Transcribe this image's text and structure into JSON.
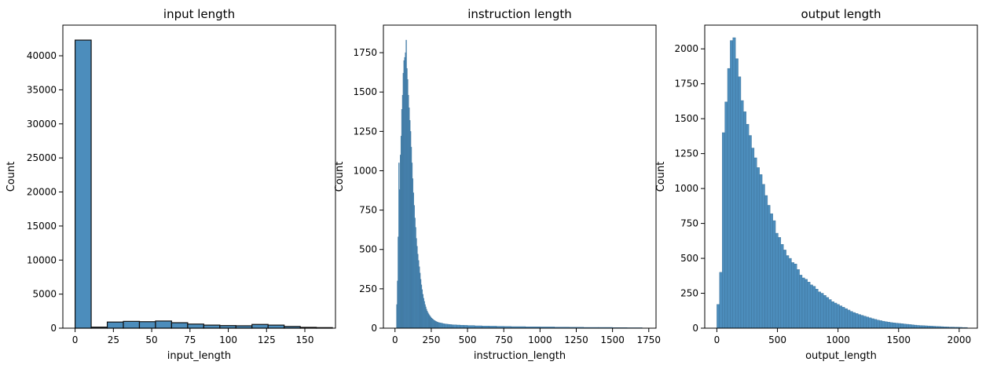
{
  "chart_data": [
    {
      "type": "histogram",
      "title": "input length",
      "xlabel": "input_length",
      "ylabel": "Count",
      "xlim": [
        -8,
        170
      ],
      "ylim": [
        0,
        44500
      ],
      "xticks": [
        0,
        25,
        50,
        75,
        100,
        125,
        150
      ],
      "yticks": [
        0,
        5000,
        10000,
        15000,
        20000,
        25000,
        30000,
        35000,
        40000
      ],
      "color": "#4c8dbc",
      "edgecolor": "#111111",
      "bins": [
        {
          "x0": 0,
          "x1": 10.5,
          "count": 42300
        },
        {
          "x0": 10.5,
          "x1": 21,
          "count": 150
        },
        {
          "x0": 21,
          "x1": 31.5,
          "count": 900
        },
        {
          "x0": 31.5,
          "x1": 42,
          "count": 1000
        },
        {
          "x0": 42,
          "x1": 52.5,
          "count": 950
        },
        {
          "x0": 52.5,
          "x1": 63,
          "count": 1050
        },
        {
          "x0": 63,
          "x1": 73.5,
          "count": 800
        },
        {
          "x0": 73.5,
          "x1": 84,
          "count": 600
        },
        {
          "x0": 84,
          "x1": 94.5,
          "count": 450
        },
        {
          "x0": 94.5,
          "x1": 105,
          "count": 380
        },
        {
          "x0": 105,
          "x1": 115.5,
          "count": 350
        },
        {
          "x0": 115.5,
          "x1": 126,
          "count": 550
        },
        {
          "x0": 126,
          "x1": 136.5,
          "count": 450
        },
        {
          "x0": 136.5,
          "x1": 147,
          "count": 250
        },
        {
          "x0": 147,
          "x1": 157.5,
          "count": 120
        },
        {
          "x0": 157.5,
          "x1": 168,
          "count": 80
        }
      ]
    },
    {
      "type": "histogram",
      "title": "instruction length",
      "xlabel": "instruction_length",
      "ylabel": "Count",
      "xlim": [
        -80,
        1800
      ],
      "ylim": [
        0,
        1925
      ],
      "xticks": [
        0,
        250,
        500,
        750,
        1000,
        1250,
        1500,
        1750
      ],
      "yticks": [
        0,
        250,
        500,
        750,
        1000,
        1250,
        1500,
        1750
      ],
      "color": "#4c8dbc",
      "edgecolor": "#3a6f96",
      "bin_width": 5,
      "x": [
        10,
        15,
        20,
        25,
        30,
        35,
        40,
        45,
        50,
        55,
        60,
        65,
        70,
        75,
        80,
        85,
        90,
        95,
        100,
        105,
        110,
        115,
        120,
        125,
        130,
        135,
        140,
        145,
        150,
        155,
        160,
        165,
        170,
        175,
        180,
        185,
        190,
        195,
        200,
        205,
        210,
        215,
        220,
        225,
        230,
        235,
        240,
        245,
        250,
        255,
        260,
        265,
        270,
        275,
        280,
        285,
        290,
        295,
        300,
        310,
        320,
        330,
        340,
        350,
        360,
        370,
        380,
        390,
        400,
        425,
        450,
        475,
        500,
        550,
        600,
        650,
        700,
        750,
        800,
        900,
        1000,
        1100,
        1200,
        1300,
        1400,
        1500,
        1600,
        1700
      ],
      "values": [
        150,
        300,
        580,
        1050,
        880,
        1100,
        1220,
        1390,
        1480,
        1620,
        1700,
        1720,
        1750,
        1830,
        1650,
        1580,
        1480,
        1400,
        1320,
        1250,
        1150,
        1050,
        950,
        860,
        780,
        700,
        640,
        570,
        520,
        470,
        430,
        390,
        350,
        310,
        275,
        245,
        215,
        190,
        170,
        150,
        135,
        120,
        108,
        98,
        90,
        82,
        76,
        70,
        64,
        60,
        56,
        52,
        49,
        46,
        43,
        41,
        39,
        37,
        35,
        33,
        31,
        29,
        27,
        26,
        25,
        24,
        23,
        22,
        21,
        20,
        19,
        18,
        17,
        15,
        14,
        13,
        12,
        11,
        10,
        9,
        8,
        7,
        6,
        5,
        5,
        4,
        3,
        3
      ]
    },
    {
      "type": "histogram",
      "title": "output length",
      "xlabel": "output_length",
      "ylabel": "Count",
      "xlim": [
        -100,
        2150
      ],
      "ylim": [
        0,
        2170
      ],
      "xticks": [
        0,
        500,
        1000,
        1500,
        2000
      ],
      "yticks": [
        0,
        250,
        500,
        750,
        1000,
        1250,
        1500,
        1750,
        2000
      ],
      "color": "#4c8dbc",
      "edgecolor": "#3a6f96",
      "bin_width": 22,
      "x": [
        0,
        22,
        44,
        66,
        88,
        110,
        132,
        154,
        176,
        198,
        220,
        242,
        264,
        286,
        308,
        330,
        352,
        374,
        396,
        418,
        440,
        462,
        484,
        506,
        528,
        550,
        572,
        594,
        616,
        638,
        660,
        682,
        704,
        726,
        748,
        770,
        792,
        814,
        836,
        858,
        880,
        902,
        924,
        946,
        968,
        990,
        1012,
        1034,
        1056,
        1078,
        1100,
        1122,
        1144,
        1166,
        1188,
        1210,
        1232,
        1254,
        1276,
        1298,
        1320,
        1342,
        1364,
        1386,
        1408,
        1430,
        1452,
        1474,
        1496,
        1518,
        1540,
        1562,
        1584,
        1606,
        1628,
        1650,
        1672,
        1694,
        1716,
        1738,
        1760,
        1782,
        1804,
        1826,
        1848,
        1870,
        1892,
        1914,
        1936,
        1958,
        1980,
        2002,
        2024,
        2046
      ],
      "values": [
        170,
        400,
        1400,
        1620,
        1860,
        2060,
        2080,
        1930,
        1800,
        1630,
        1550,
        1460,
        1380,
        1290,
        1220,
        1150,
        1100,
        1030,
        950,
        880,
        820,
        770,
        680,
        650,
        600,
        560,
        520,
        500,
        470,
        460,
        420,
        380,
        360,
        350,
        330,
        310,
        300,
        280,
        260,
        250,
        235,
        220,
        205,
        190,
        180,
        170,
        160,
        150,
        140,
        130,
        120,
        112,
        105,
        98,
        92,
        86,
        80,
        74,
        68,
        63,
        58,
        54,
        50,
        46,
        43,
        40,
        38,
        36,
        34,
        32,
        30,
        28,
        26,
        24,
        22,
        20,
        19,
        18,
        17,
        16,
        15,
        14,
        13,
        12,
        11,
        10,
        9,
        8,
        8,
        7,
        7,
        6,
        5,
        5
      ]
    }
  ]
}
